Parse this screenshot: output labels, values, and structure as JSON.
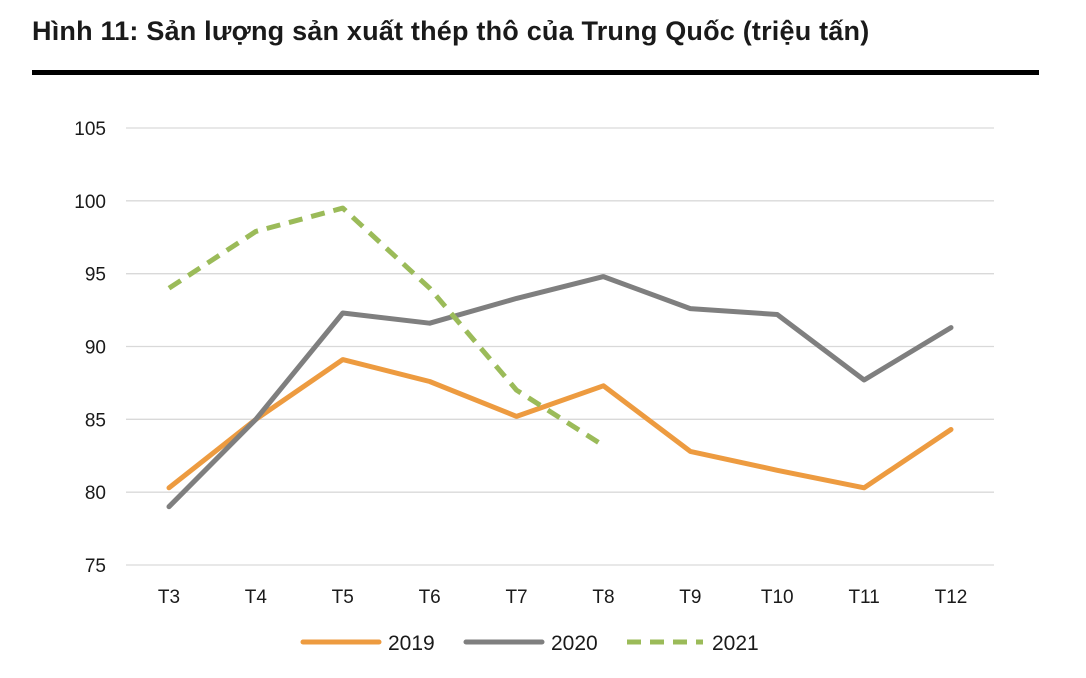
{
  "title": "Hình 11: Sản lượng sản xuất thép thô của Trung Quốc (triệu tấn)",
  "chart_data": {
    "type": "line",
    "title": "Hình 11: Sản lượng sản xuất thép thô của Trung Quốc (triệu tấn)",
    "xlabel": "",
    "ylabel": "",
    "categories": [
      "T3",
      "T4",
      "T5",
      "T6",
      "T7",
      "T8",
      "T9",
      "T10",
      "T11",
      "T12"
    ],
    "ylim": [
      75,
      105
    ],
    "yticks": [
      75,
      80,
      85,
      90,
      95,
      100,
      105
    ],
    "grid": true,
    "legend_position": "bottom",
    "series": [
      {
        "name": "2019",
        "color": "#ED9B40",
        "dash": "solid",
        "values": [
          80.3,
          85.0,
          89.1,
          87.6,
          85.2,
          87.3,
          82.8,
          81.5,
          80.3,
          84.3
        ]
      },
      {
        "name": "2020",
        "color": "#7F7F7F",
        "dash": "solid",
        "values": [
          79.0,
          85.0,
          92.3,
          91.6,
          93.3,
          94.8,
          92.6,
          92.2,
          87.7,
          91.3
        ]
      },
      {
        "name": "2021",
        "color": "#9BBB59",
        "dash": "dashed",
        "values": [
          94.0,
          97.9,
          99.5,
          94.0,
          87.0,
          83.2,
          null,
          null,
          null,
          null
        ]
      }
    ]
  }
}
